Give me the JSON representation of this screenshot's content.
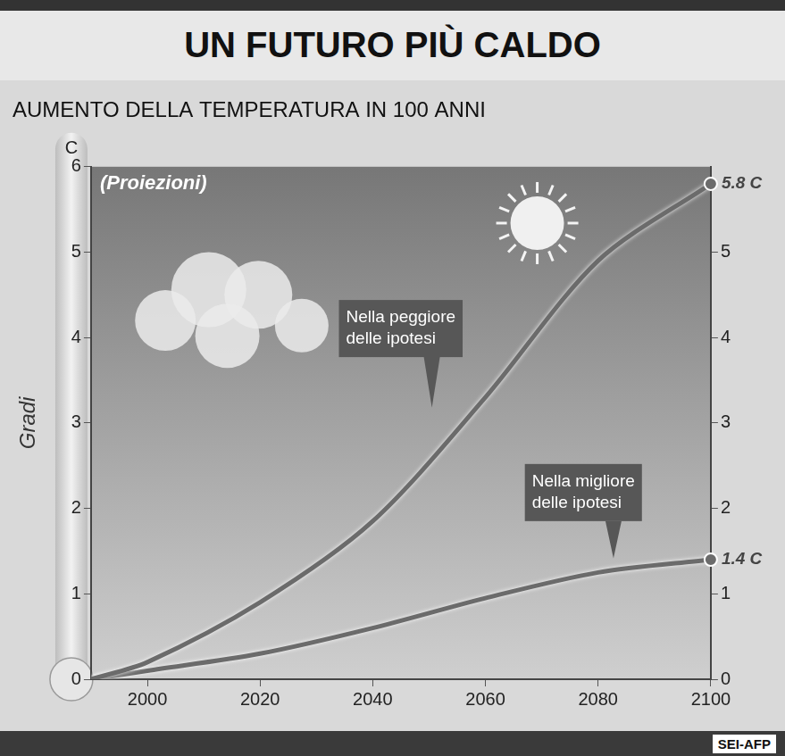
{
  "chart_data": {
    "type": "line",
    "title": "UN FUTURO PIÙ CALDO",
    "subtitle": "AUMENTO DELLA TEMPERATURA IN 100 ANNI",
    "projection_label": "(Proiezioni)",
    "y_label": "Gradi",
    "y_unit": "C",
    "source": "SEI-AFP",
    "x": [
      1990,
      2000,
      2020,
      2040,
      2060,
      2080,
      2100
    ],
    "series": [
      {
        "name": "Nella peggiore delle ipotesi",
        "color": "#6b6b6b",
        "values": [
          0,
          0.2,
          0.9,
          1.85,
          3.3,
          4.9,
          5.8
        ],
        "value_labels": [
          null,
          null,
          null,
          null,
          null,
          null,
          "5.8 C"
        ]
      },
      {
        "name": "Nella migliore delle ipotesi",
        "color": "#6b6b6b",
        "values": [
          0,
          0.1,
          0.3,
          0.6,
          0.95,
          1.25,
          1.4
        ],
        "value_labels": [
          null,
          null,
          null,
          null,
          null,
          null,
          "1.4 C"
        ]
      }
    ],
    "xlim": [
      1990,
      2100
    ],
    "xticks": [
      2000,
      2020,
      2040,
      2060,
      2080,
      2100
    ],
    "ylim": [
      0,
      6
    ],
    "yticks": [
      0,
      1,
      2,
      3,
      4,
      5,
      6
    ],
    "y2lim": [
      0,
      6
    ],
    "y2ticks": [
      0,
      1,
      2,
      3,
      4,
      5
    ],
    "grid": false
  }
}
